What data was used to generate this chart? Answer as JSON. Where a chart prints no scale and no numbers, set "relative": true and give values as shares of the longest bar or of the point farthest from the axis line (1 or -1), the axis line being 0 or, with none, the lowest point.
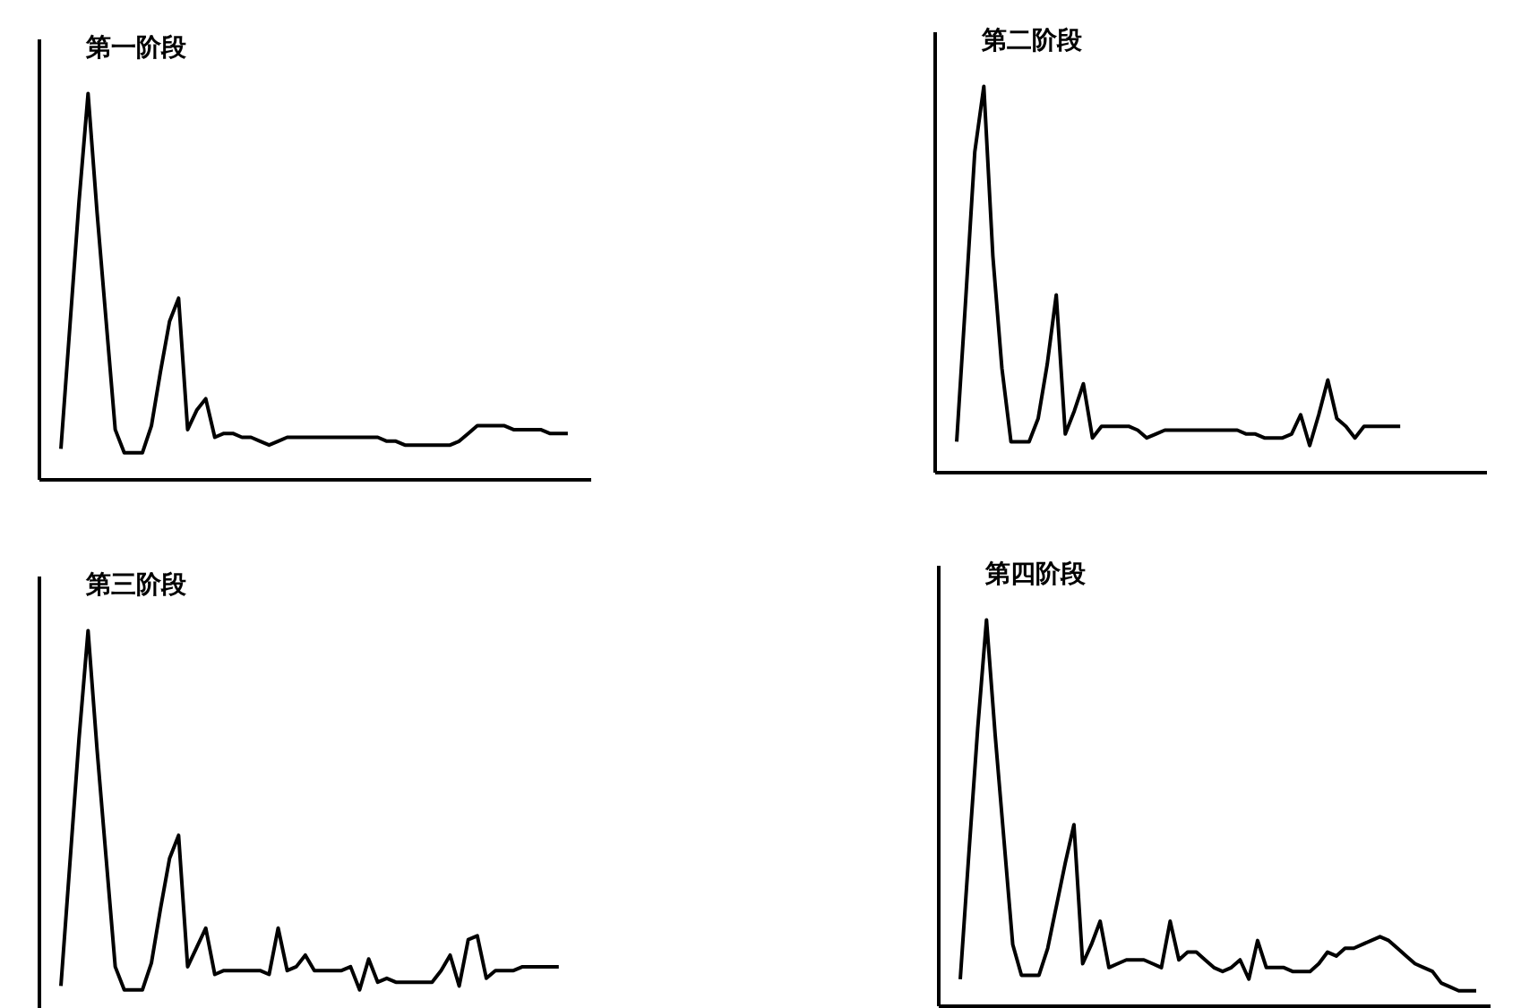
{
  "chart_data": [
    {
      "type": "line",
      "title": "第一阶段",
      "relative": true,
      "grid": false,
      "legend": false,
      "marker": "none",
      "categories": [
        null,
        null,
        null,
        null,
        null,
        null,
        null,
        null,
        null,
        null,
        null,
        null,
        null,
        null,
        null,
        null,
        null,
        null,
        null,
        null,
        null,
        null,
        null,
        null,
        null,
        null,
        null,
        null,
        null,
        null,
        null,
        null,
        null,
        null,
        null,
        null,
        null,
        null,
        null,
        null,
        null,
        null,
        null,
        null,
        null,
        null,
        null,
        null,
        null,
        null,
        null,
        null,
        null,
        null,
        null,
        null,
        null,
        null
      ],
      "series": [
        {
          "color": "#000000",
          "values": [
            0.08,
            0.4,
            0.72,
            1,
            0.69,
            0.41,
            0.13,
            0.07,
            0.07,
            0.07,
            0.14,
            0.28,
            0.41,
            0.47,
            0.13,
            0.18,
            0.21,
            0.11,
            0.12,
            0.12,
            0.11,
            0.11,
            0.1,
            0.09,
            0.1,
            0.11,
            0.11,
            0.11,
            0.11,
            0.11,
            0.11,
            0.11,
            0.11,
            0.11,
            0.11,
            0.11,
            0.1,
            0.1,
            0.09,
            0.09,
            0.09,
            0.09,
            0.09,
            0.09,
            0.1,
            0.12,
            0.14,
            0.14,
            0.14,
            0.14,
            0.13,
            0.13,
            0.13,
            0.13,
            0.12,
            0.12,
            0.12,
            null
          ]
        }
      ]
    },
    {
      "type": "line",
      "title": "第二阶段",
      "relative": true,
      "grid": false,
      "legend": false,
      "marker": "none",
      "categories": [
        null,
        null,
        null,
        null,
        null,
        null,
        null,
        null,
        null,
        null,
        null,
        null,
        null,
        null,
        null,
        null,
        null,
        null,
        null,
        null,
        null,
        null,
        null,
        null,
        null,
        null,
        null,
        null,
        null,
        null,
        null,
        null,
        null,
        null,
        null,
        null,
        null,
        null,
        null,
        null,
        null,
        null,
        null,
        null,
        null,
        null,
        null,
        null,
        null,
        null,
        null,
        null,
        null,
        null,
        null,
        null,
        null,
        null
      ],
      "series": [
        {
          "color": "#000000",
          "values": [
            0.08,
            0.45,
            0.83,
            1,
            0.56,
            0.27,
            0.08,
            0.08,
            0.08,
            0.14,
            0.28,
            0.46,
            0.1,
            0.16,
            0.23,
            0.09,
            0.12,
            0.12,
            0.12,
            0.12,
            0.11,
            0.09,
            0.1,
            0.11,
            0.11,
            0.11,
            0.11,
            0.11,
            0.11,
            0.11,
            0.11,
            0.11,
            0.1,
            0.1,
            0.09,
            0.09,
            0.09,
            0.1,
            0.15,
            0.07,
            0.15,
            0.24,
            0.14,
            0.12,
            0.09,
            0.12,
            0.12,
            0.12,
            0.12,
            0.12,
            null,
            null,
            null,
            null,
            null,
            null,
            null,
            null
          ]
        }
      ]
    },
    {
      "type": "line",
      "title": "第三阶段",
      "relative": true,
      "grid": false,
      "legend": false,
      "marker": "none",
      "categories": [
        null,
        null,
        null,
        null,
        null,
        null,
        null,
        null,
        null,
        null,
        null,
        null,
        null,
        null,
        null,
        null,
        null,
        null,
        null,
        null,
        null,
        null,
        null,
        null,
        null,
        null,
        null,
        null,
        null,
        null,
        null,
        null,
        null,
        null,
        null,
        null,
        null,
        null,
        null,
        null,
        null,
        null,
        null,
        null,
        null,
        null,
        null,
        null,
        null,
        null,
        null,
        null,
        null,
        null,
        null,
        null,
        null,
        null
      ],
      "series": [
        {
          "color": "#000000",
          "values": [
            0.08,
            0.4,
            0.72,
            1,
            0.69,
            0.41,
            0.13,
            0.07,
            0.07,
            0.07,
            0.14,
            0.28,
            0.41,
            0.47,
            0.13,
            0.18,
            0.23,
            0.11,
            0.12,
            0.12,
            0.12,
            0.12,
            0.12,
            0.11,
            0.23,
            0.12,
            0.13,
            0.16,
            0.12,
            0.12,
            0.12,
            0.12,
            0.13,
            0.07,
            0.15,
            0.09,
            0.1,
            0.09,
            0.09,
            0.09,
            0.09,
            0.09,
            0.12,
            0.16,
            0.08,
            0.2,
            0.21,
            0.1,
            0.12,
            0.12,
            0.12,
            0.13,
            0.13,
            0.13,
            0.13,
            0.13,
            null,
            null
          ]
        }
      ]
    },
    {
      "type": "line",
      "title": "第四阶段",
      "relative": true,
      "grid": false,
      "legend": false,
      "marker": "none",
      "categories": [
        null,
        null,
        null,
        null,
        null,
        null,
        null,
        null,
        null,
        null,
        null,
        null,
        null,
        null,
        null,
        null,
        null,
        null,
        null,
        null,
        null,
        null,
        null,
        null,
        null,
        null,
        null,
        null,
        null,
        null,
        null,
        null,
        null,
        null,
        null,
        null,
        null,
        null,
        null,
        null,
        null,
        null,
        null,
        null,
        null,
        null,
        null,
        null,
        null,
        null,
        null,
        null,
        null,
        null,
        null,
        null,
        null,
        null,
        null,
        null
      ],
      "series": [
        {
          "color": "#000000",
          "values": [
            0.07,
            0.4,
            0.72,
            1,
            0.7,
            0.43,
            0.16,
            0.08,
            0.08,
            0.08,
            0.15,
            0.26,
            0.37,
            0.47,
            0.11,
            0.16,
            0.22,
            0.1,
            0.11,
            0.12,
            0.12,
            0.12,
            0.11,
            0.1,
            0.22,
            0.12,
            0.14,
            0.14,
            0.12,
            0.1,
            0.09,
            0.1,
            0.12,
            0.07,
            0.17,
            0.1,
            0.1,
            0.1,
            0.09,
            0.09,
            0.09,
            0.11,
            0.14,
            0.13,
            0.15,
            0.15,
            0.16,
            0.17,
            0.18,
            0.17,
            0.15,
            0.13,
            0.11,
            0.1,
            0.09,
            0.06,
            0.05,
            0.04,
            0.04,
            0.04
          ]
        }
      ]
    }
  ]
}
